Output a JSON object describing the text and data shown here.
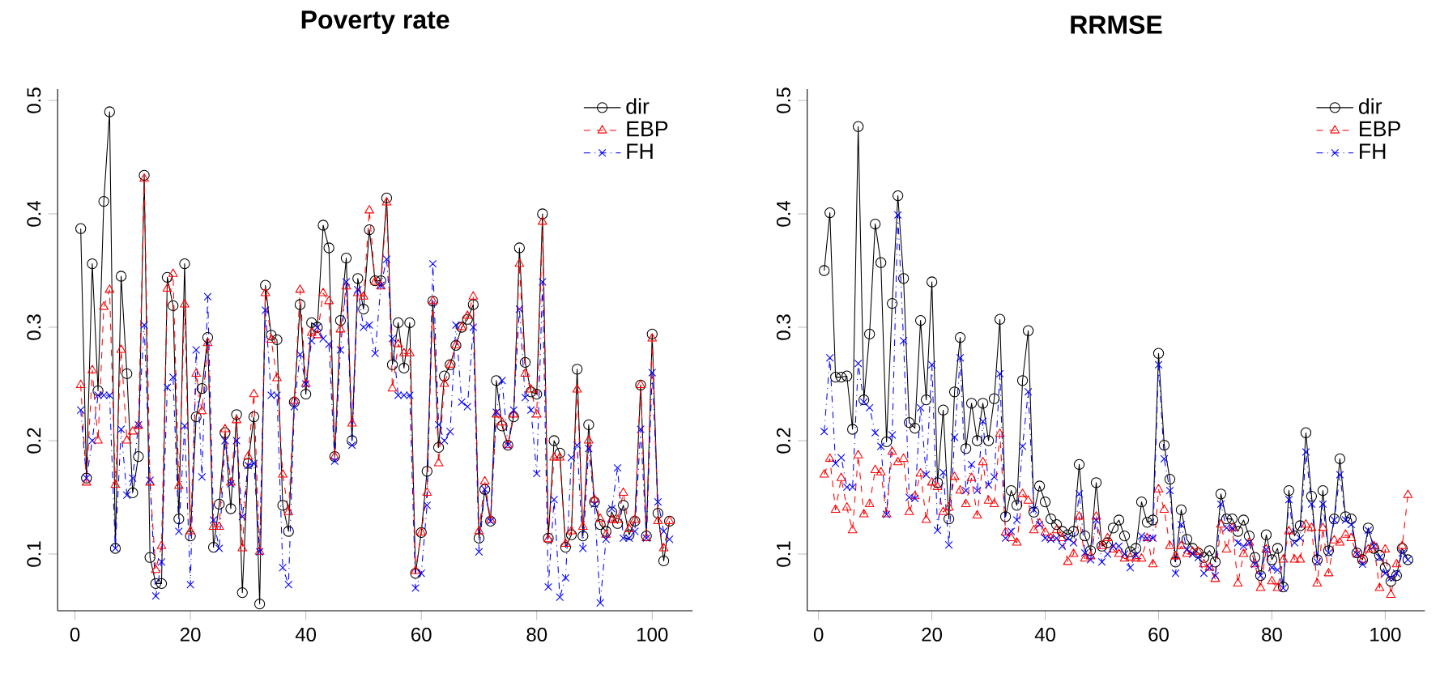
{
  "chart_data": [
    {
      "type": "line",
      "title": "Poverty rate",
      "x": [
        1,
        2,
        3,
        4,
        5,
        6,
        7,
        8,
        9,
        10,
        11,
        12,
        13,
        14,
        15,
        16,
        17,
        18,
        19,
        20,
        21,
        22,
        23,
        24,
        25,
        26,
        27,
        28,
        29,
        30,
        31,
        32,
        33,
        34,
        35,
        36,
        37,
        38,
        39,
        40,
        41,
        42,
        43,
        44,
        45,
        46,
        47,
        48,
        49,
        50,
        51,
        52,
        53,
        54,
        55,
        56,
        57,
        58,
        59,
        60,
        61,
        62,
        63,
        64,
        65,
        66,
        67,
        68,
        69,
        70,
        71,
        72,
        73,
        74,
        75,
        76,
        77,
        78,
        79,
        80,
        81,
        82,
        83,
        84,
        85,
        86,
        87,
        88,
        89,
        90,
        91,
        92,
        93,
        94,
        95,
        96,
        97,
        98,
        99,
        100,
        101,
        102,
        103
      ],
      "xlim": [
        -3,
        107
      ],
      "ylim": [
        0.05,
        0.51
      ],
      "xticks": [
        0,
        20,
        40,
        60,
        80,
        100
      ],
      "yticks": [
        0.1,
        0.2,
        0.3,
        0.4,
        0.5
      ],
      "legend": "top right",
      "grid": false,
      "series": [
        {
          "name": "dir",
          "color": "#000000",
          "marker": "circle",
          "line_style": "solid",
          "values": [
            0.387,
            0.167,
            0.356,
            0.244,
            0.411,
            0.49,
            0.105,
            0.345,
            0.259,
            0.154,
            0.186,
            0.434,
            0.097,
            0.074,
            0.074,
            0.344,
            0.319,
            0.131,
            0.356,
            0.116,
            0.221,
            0.246,
            0.291,
            0.106,
            0.144,
            0.207,
            0.14,
            0.223,
            0.066,
            0.18,
            0.221,
            0.056,
            0.337,
            0.293,
            0.289,
            0.143,
            0.12,
            0.234,
            0.32,
            0.241,
            0.304,
            0.3,
            0.39,
            0.37,
            0.186,
            0.306,
            0.361,
            0.2,
            0.343,
            0.316,
            0.386,
            0.341,
            0.341,
            0.414,
            0.267,
            0.304,
            0.264,
            0.304,
            0.083,
            0.119,
            0.173,
            0.323,
            0.194,
            0.257,
            0.267,
            0.284,
            0.3,
            0.307,
            0.32,
            0.114,
            0.157,
            0.129,
            0.253,
            0.213,
            0.196,
            0.221,
            0.37,
            0.269,
            0.243,
            0.241,
            0.4,
            0.114,
            0.2,
            0.189,
            0.106,
            0.117,
            0.263,
            0.116,
            0.214,
            0.146,
            0.126,
            0.12,
            0.137,
            0.127,
            0.143,
            0.117,
            0.129,
            0.249,
            0.116,
            0.294,
            0.136,
            0.094,
            0.129
          ]
        },
        {
          "name": "EBP",
          "color": "#ff0000",
          "marker": "triangle",
          "line_style": "dashed",
          "values": [
            0.249,
            0.163,
            0.262,
            0.2,
            0.318,
            0.333,
            0.161,
            0.28,
            0.2,
            0.208,
            0.213,
            0.431,
            0.163,
            0.086,
            0.107,
            0.334,
            0.347,
            0.16,
            0.32,
            0.12,
            0.259,
            0.226,
            0.286,
            0.124,
            0.124,
            0.21,
            0.163,
            0.218,
            0.105,
            0.186,
            0.241,
            0.102,
            0.33,
            0.289,
            0.255,
            0.17,
            0.137,
            0.235,
            0.333,
            0.25,
            0.295,
            0.293,
            0.33,
            0.323,
            0.186,
            0.298,
            0.336,
            0.215,
            0.33,
            0.327,
            0.403,
            0.34,
            0.336,
            0.41,
            0.246,
            0.285,
            0.277,
            0.277,
            0.085,
            0.119,
            0.154,
            0.323,
            0.18,
            0.25,
            0.267,
            0.284,
            0.3,
            0.31,
            0.327,
            0.12,
            0.164,
            0.13,
            0.223,
            0.216,
            0.196,
            0.223,
            0.356,
            0.259,
            0.245,
            0.223,
            0.393,
            0.113,
            0.185,
            0.185,
            0.109,
            0.12,
            0.245,
            0.124,
            0.2,
            0.148,
            0.131,
            0.117,
            0.13,
            0.13,
            0.154,
            0.122,
            0.13,
            0.249,
            0.114,
            0.29,
            0.129,
            0.105,
            0.129
          ]
        },
        {
          "name": "FH",
          "color": "#0000ff",
          "marker": "cross",
          "line_style": "dotted",
          "values": [
            0.227,
            0.167,
            0.2,
            0.24,
            0.24,
            0.24,
            0.105,
            0.21,
            0.152,
            0.167,
            0.214,
            0.302,
            0.165,
            0.063,
            0.093,
            0.247,
            0.256,
            0.12,
            0.213,
            0.073,
            0.28,
            0.168,
            0.327,
            0.13,
            0.105,
            0.2,
            0.162,
            0.2,
            0.133,
            0.178,
            0.18,
            0.102,
            0.315,
            0.24,
            0.24,
            0.088,
            0.073,
            0.23,
            0.276,
            0.25,
            0.288,
            0.3,
            0.29,
            0.285,
            0.182,
            0.28,
            0.34,
            0.196,
            0.333,
            0.3,
            0.302,
            0.277,
            0.337,
            0.36,
            0.29,
            0.24,
            0.24,
            0.24,
            0.07,
            0.083,
            0.143,
            0.356,
            0.214,
            0.2,
            0.208,
            0.302,
            0.234,
            0.23,
            0.3,
            0.102,
            0.157,
            0.129,
            0.225,
            0.253,
            0.196,
            0.227,
            0.316,
            0.238,
            0.227,
            0.171,
            0.34,
            0.071,
            0.148,
            0.062,
            0.079,
            0.185,
            0.196,
            0.105,
            0.193,
            0.144,
            0.057,
            0.113,
            0.14,
            0.176,
            0.114,
            0.114,
            0.12,
            0.21,
            0.114,
            0.26,
            0.146,
            0.12,
            0.113
          ]
        }
      ]
    },
    {
      "type": "line",
      "title": "RRMSE",
      "x": [
        1,
        2,
        3,
        4,
        5,
        6,
        7,
        8,
        9,
        10,
        11,
        12,
        13,
        14,
        15,
        16,
        17,
        18,
        19,
        20,
        21,
        22,
        23,
        24,
        25,
        26,
        27,
        28,
        29,
        30,
        31,
        32,
        33,
        34,
        35,
        36,
        37,
        38,
        39,
        40,
        41,
        42,
        43,
        44,
        45,
        46,
        47,
        48,
        49,
        50,
        51,
        52,
        53,
        54,
        55,
        56,
        57,
        58,
        59,
        60,
        61,
        62,
        63,
        64,
        65,
        66,
        67,
        68,
        69,
        70,
        71,
        72,
        73,
        74,
        75,
        76,
        77,
        78,
        79,
        80,
        81,
        82,
        83,
        84,
        85,
        86,
        87,
        88,
        89,
        90,
        91,
        92,
        93,
        94,
        95,
        96,
        97,
        98,
        99,
        100,
        101,
        102,
        103,
        104
      ],
      "xlim": [
        -2,
        107
      ],
      "ylim": [
        0.05,
        0.51
      ],
      "xticks": [
        0,
        20,
        40,
        60,
        80,
        100
      ],
      "yticks": [
        0.1,
        0.2,
        0.3,
        0.4,
        0.5
      ],
      "legend": "top right",
      "grid": false,
      "series": [
        {
          "name": "dir",
          "color": "#000000",
          "marker": "circle",
          "line_style": "solid",
          "values": [
            0.35,
            0.401,
            0.256,
            0.256,
            0.257,
            0.21,
            0.477,
            0.236,
            0.294,
            0.391,
            0.357,
            0.199,
            0.321,
            0.416,
            0.343,
            0.216,
            0.211,
            0.306,
            0.236,
            0.34,
            0.163,
            0.227,
            0.131,
            0.243,
            0.291,
            0.193,
            0.233,
            0.2,
            0.233,
            0.2,
            0.237,
            0.307,
            0.133,
            0.156,
            0.143,
            0.253,
            0.297,
            0.137,
            0.16,
            0.146,
            0.131,
            0.126,
            0.12,
            0.117,
            0.12,
            0.179,
            0.116,
            0.103,
            0.163,
            0.107,
            0.11,
            0.123,
            0.13,
            0.116,
            0.102,
            0.105,
            0.146,
            0.128,
            0.13,
            0.277,
            0.196,
            0.166,
            0.093,
            0.139,
            0.113,
            0.105,
            0.101,
            0.097,
            0.103,
            0.093,
            0.153,
            0.131,
            0.131,
            0.12,
            0.13,
            0.116,
            0.097,
            0.081,
            0.117,
            0.095,
            0.105,
            0.071,
            0.156,
            0.116,
            0.125,
            0.207,
            0.151,
            0.095,
            0.156,
            0.103,
            0.131,
            0.184,
            0.133,
            0.131,
            0.101,
            0.095,
            0.123,
            0.105,
            0.099,
            0.088,
            0.076,
            0.081,
            0.105,
            0.095
          ]
        },
        {
          "name": "EBP",
          "color": "#ff0000",
          "marker": "triangle",
          "line_style": "dashed",
          "values": [
            0.17,
            0.184,
            0.139,
            0.167,
            0.141,
            0.121,
            0.187,
            0.135,
            0.144,
            0.174,
            0.172,
            0.135,
            0.19,
            0.181,
            0.184,
            0.137,
            0.151,
            0.171,
            0.13,
            0.163,
            0.159,
            0.137,
            0.141,
            0.168,
            0.156,
            0.144,
            0.167,
            0.134,
            0.181,
            0.147,
            0.144,
            0.206,
            0.119,
            0.114,
            0.11,
            0.153,
            0.147,
            0.121,
            0.127,
            0.119,
            0.114,
            0.121,
            0.114,
            0.093,
            0.1,
            0.133,
            0.096,
            0.098,
            0.133,
            0.107,
            0.114,
            0.104,
            0.1,
            0.096,
            0.097,
            0.096,
            0.096,
            0.114,
            0.091,
            0.157,
            0.139,
            0.107,
            0.098,
            0.107,
            0.1,
            0.102,
            0.102,
            0.091,
            0.088,
            0.078,
            0.126,
            0.104,
            0.123,
            0.074,
            0.1,
            0.11,
            0.091,
            0.07,
            0.104,
            0.076,
            0.07,
            0.095,
            0.12,
            0.095,
            0.095,
            0.126,
            0.123,
            0.074,
            0.123,
            0.083,
            0.112,
            0.11,
            0.117,
            0.114,
            0.1,
            0.095,
            0.104,
            0.107,
            0.07,
            0.104,
            0.064,
            0.091,
            0.107,
            0.152
          ]
        },
        {
          "name": "FH",
          "color": "#0000ff",
          "marker": "cross",
          "line_style": "dotted",
          "values": [
            0.208,
            0.273,
            0.18,
            0.185,
            0.159,
            0.159,
            0.268,
            0.234,
            0.229,
            0.207,
            0.195,
            0.135,
            0.205,
            0.399,
            0.288,
            0.15,
            0.149,
            0.229,
            0.17,
            0.267,
            0.121,
            0.172,
            0.108,
            0.203,
            0.273,
            0.156,
            0.179,
            0.156,
            0.217,
            0.161,
            0.168,
            0.259,
            0.114,
            0.12,
            0.13,
            0.195,
            0.243,
            0.139,
            0.126,
            0.114,
            0.113,
            0.114,
            0.107,
            0.114,
            0.11,
            0.153,
            0.101,
            0.095,
            0.13,
            0.093,
            0.1,
            0.107,
            0.107,
            0.1,
            0.088,
            0.099,
            0.116,
            0.114,
            0.114,
            0.267,
            0.184,
            0.156,
            0.083,
            0.126,
            0.104,
            0.1,
            0.097,
            0.083,
            0.088,
            0.081,
            0.144,
            0.123,
            0.123,
            0.11,
            0.107,
            0.11,
            0.091,
            0.081,
            0.104,
            0.088,
            0.086,
            0.07,
            0.148,
            0.11,
            0.114,
            0.19,
            0.144,
            0.093,
            0.144,
            0.101,
            0.13,
            0.17,
            0.13,
            0.126,
            0.1,
            0.091,
            0.121,
            0.107,
            0.097,
            0.083,
            0.079,
            0.083,
            0.101,
            0.095
          ]
        }
      ]
    }
  ]
}
